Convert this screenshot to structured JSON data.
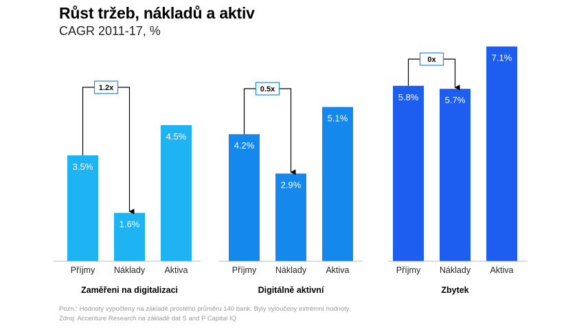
{
  "title": "Růst tržeb, nákladů a aktiv",
  "subtitle": "CAGR 2011-17, %",
  "notes": {
    "line1": "Pozn.: Hodnoty vypočteny na základě prostého průměru 140 bank. Byly vyloučeny extrémní hodnoty.",
    "line2": "Zdroj: Accenture Research na základě dat S and P Capital IQ"
  },
  "colors": {
    "group1": "#1eb3f3",
    "group2": "#1488ec",
    "group3": "#1d5ef0"
  },
  "chart_data": [
    {
      "type": "bar",
      "group_label": "Zaměřeni na digitalizaci",
      "categories": [
        "Příjmy",
        "Náklady",
        "Aktiva"
      ],
      "values": [
        3.5,
        1.6,
        4.5
      ],
      "value_labels": [
        "3.5%",
        "1.6%",
        "4.5%"
      ],
      "ratio_label": "1.2x"
    },
    {
      "type": "bar",
      "group_label": "Digitálně aktivní",
      "categories": [
        "Příjmy",
        "Náklady",
        "Aktiva"
      ],
      "values": [
        4.2,
        2.9,
        5.1
      ],
      "value_labels": [
        "4.2%",
        "2.9%",
        "5.1%"
      ],
      "ratio_label": "0.5x"
    },
    {
      "type": "bar",
      "group_label": "Zbytek",
      "categories": [
        "Příjmy",
        "Náklady",
        "Aktiva"
      ],
      "values": [
        5.8,
        5.7,
        7.1
      ],
      "value_labels": [
        "5.8%",
        "5.7%",
        "7.1%"
      ],
      "ratio_label": "0x"
    }
  ]
}
